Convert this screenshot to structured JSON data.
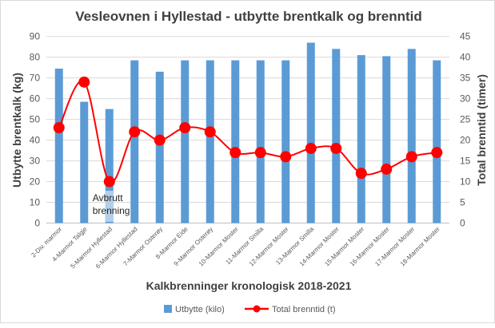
{
  "chart_data": {
    "type": "bar+line",
    "title": "Vesleovnen i Hyllestad - utbytte brentkalk og brenntid",
    "xlabel": "Kalkbrenninger kronologisk 2018-2021",
    "ylabel": "Utbytte brentkalk (kg)",
    "y2label": "Total brenntid (timer)",
    "ylim": [
      0,
      90
    ],
    "y2lim": [
      0,
      45
    ],
    "yticks": [
      0,
      10,
      20,
      30,
      40,
      50,
      60,
      70,
      80,
      90
    ],
    "y2ticks": [
      0,
      5,
      10,
      15,
      20,
      25,
      30,
      35,
      40,
      45
    ],
    "grid": true,
    "legend_position": "bottom",
    "categories": [
      "2-Div. marmor",
      "4-Marmor Talgje",
      "5-Marmor Hyllestad",
      "6-Marmor Hyllestad",
      "7-Marmor Osterøy",
      "8-Marmor Eide",
      "9-Marmor Osterøy",
      "10-Marmor Moster",
      "11-Marmor Smilla",
      "12-Marmor Moster",
      "13-Marmor Smilla",
      "14-Marmor Moster",
      "15-Marmor Moster",
      "16-Marmor Moster",
      "17-Marmor Moster",
      "18-Marmor Moster"
    ],
    "series": [
      {
        "name": "Utbytte (kilo)",
        "type": "bar",
        "axis": "left",
        "color": "#5b9bd5",
        "values": [
          74.5,
          58.5,
          55,
          78.5,
          73,
          78.5,
          78.5,
          78.5,
          78.5,
          78.5,
          87,
          84,
          81,
          80.5,
          84,
          78.5
        ]
      },
      {
        "name": "Total brenntid (t)",
        "type": "line",
        "axis": "right",
        "color": "#ff0000",
        "values": [
          23,
          34,
          10,
          22,
          20,
          23,
          22,
          17,
          17,
          16,
          18,
          18,
          12,
          13,
          16,
          17
        ]
      }
    ],
    "annotations": [
      {
        "text_lines": [
          "Avbrutt",
          "brenning"
        ],
        "category": "5-Marmor Hyllestad"
      }
    ]
  }
}
